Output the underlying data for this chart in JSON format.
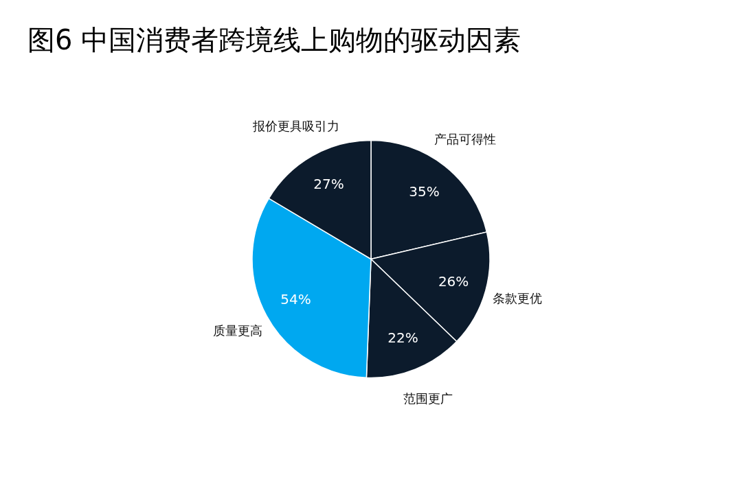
{
  "chart_data": {
    "type": "pie",
    "title": "图6 中国消费者跨境线上购物的驱动因素",
    "categories": [
      "产品可得性",
      "条款更优",
      "范围更广",
      "质量更高",
      "报价更具吸引力"
    ],
    "values": [
      35,
      26,
      22,
      54,
      27
    ],
    "value_labels": [
      "35%",
      "26%",
      "22%",
      "54%",
      "27%"
    ],
    "colors": [
      "#0c1b2c",
      "#0c1b2c",
      "#0c1b2c",
      "#00a8f0",
      "#0c1b2c"
    ],
    "legend": false
  }
}
